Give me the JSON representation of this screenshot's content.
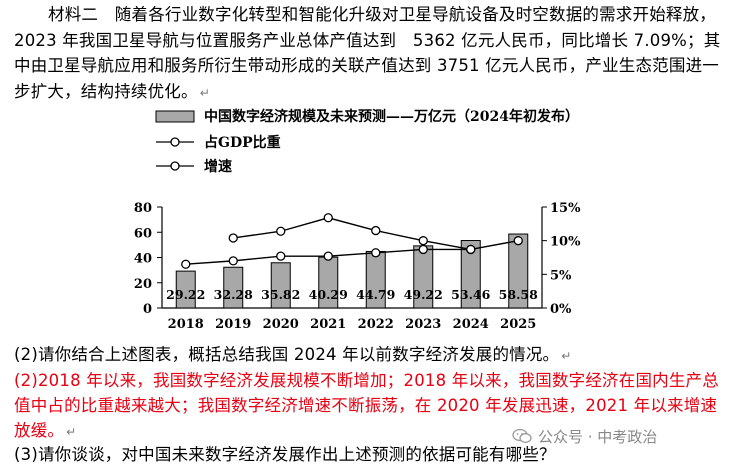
{
  "material": {
    "text": "材料二　随着各行业数字化转型和智能化升级对卫星导航设备及时空数据的需求开始释放，2023 年我国卫星导航与位置服务产业总体产值达到　5362 亿元人民币，同比增长 7.09%；其中由卫星导航应用和服务所衍生带动形成的关联产值达到 3751 亿元人民币，产业生态范围进一步扩大，结构持续优化。"
  },
  "paragraph_mark": "↵",
  "chart_legend": {
    "bar_label": "中国数字经济规模及未来预测——万亿元（2024年初发布）",
    "gdp_label": "占GDP比重",
    "growth_label": "增速"
  },
  "chart_data": {
    "type": "bar",
    "categories": [
      "2018",
      "2019",
      "2020",
      "2021",
      "2022",
      "2023",
      "2024",
      "2025"
    ],
    "series": [
      {
        "name": "中国数字经济规模及未来预测——万亿元（2024年初发布）",
        "type": "bar",
        "axis": "left",
        "values": [
          29.22,
          32.28,
          35.82,
          40.29,
          44.79,
          49.22,
          53.46,
          58.58
        ],
        "labels": [
          "29.22",
          "32.28",
          "35.82",
          "40.29",
          "44.79",
          "49.22",
          "53.46",
          "58.58"
        ]
      },
      {
        "name": "占GDP比重",
        "type": "line",
        "axis": "right",
        "values": [
          6.5,
          7.0,
          7.7,
          7.7,
          8.2,
          8.7,
          8.7,
          10.0
        ]
      },
      {
        "name": "增速",
        "type": "line",
        "axis": "right",
        "values": [
          null,
          10.4,
          11.4,
          13.4,
          11.5,
          10.0,
          8.7,
          null
        ]
      }
    ],
    "ylim_left": [
      0,
      80
    ],
    "yticks_left": [
      "0",
      "20",
      "40",
      "60",
      "80"
    ],
    "ylim_right": [
      0,
      15
    ],
    "yticks_right": [
      "0%",
      "5%",
      "10%",
      "15%"
    ],
    "colors": {
      "bar": "#a8a8a8",
      "line": "#000000",
      "marker_fill": "#ffffff"
    }
  },
  "question2": {
    "text": "(2)请你结合上述图表，概括总结我国 2024 年以前数字经济发展的情况。"
  },
  "answer2": {
    "text": "(2)2018 年以来，我国数字经济发展规模不断增加；2018 年以来，我国数字经济在国内生产总值中占的比重越来越大；我国数字经济增速不断振荡，在 2020 年发展迅速，2021 年以来增速放缓。",
    "color": "#e60012"
  },
  "question3": {
    "text": "(3)请你谈谈，对中国未来数字经济发展作出上述预测的依据可能有哪些？"
  },
  "watermark": {
    "text": "公众号 · 中考政治"
  }
}
